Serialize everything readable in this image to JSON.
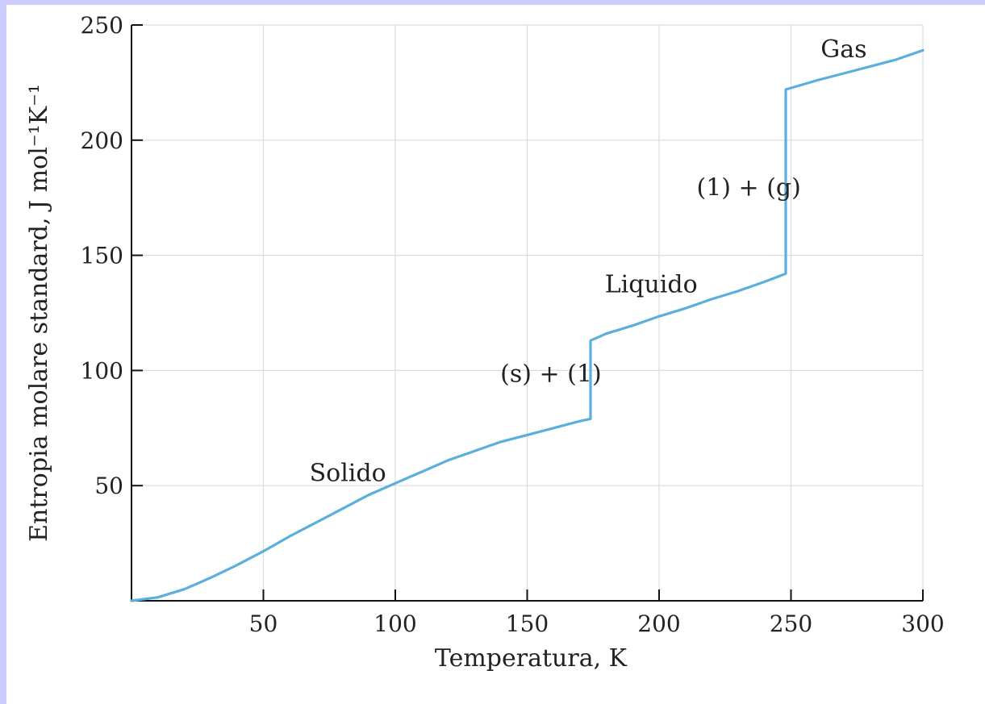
{
  "chart_data": {
    "type": "line",
    "title": "",
    "xlabel": "Temperatura, K",
    "ylabel": "Entropia molare standard, J mol⁻¹K⁻¹",
    "xlim": [
      0,
      300
    ],
    "ylim": [
      0,
      250
    ],
    "xticks": [
      50,
      100,
      150,
      200,
      250,
      300
    ],
    "yticks": [
      50,
      100,
      150,
      200,
      250
    ],
    "grid": true,
    "series": [
      {
        "color": "#5aafdc",
        "x": [
          0,
          10,
          20,
          30,
          40,
          50,
          60,
          70,
          80,
          90,
          100,
          110,
          120,
          130,
          140,
          150,
          160,
          170,
          174,
          174,
          180,
          190,
          200,
          210,
          220,
          230,
          240,
          248,
          248,
          260,
          270,
          280,
          290,
          300
        ],
        "y": [
          0,
          1.5,
          5,
          10,
          15.5,
          21.5,
          28,
          34,
          40,
          46,
          51,
          56,
          61,
          65,
          69,
          72,
          75,
          78,
          79,
          113,
          116,
          119.5,
          123.5,
          127,
          131,
          134.5,
          138.5,
          142,
          222,
          226,
          229,
          232,
          235,
          239
        ]
      }
    ],
    "annotations": [
      {
        "text": "Solido",
        "x": 82,
        "y": 52
      },
      {
        "text": "(s) + (1)",
        "x": 159,
        "y": 95
      },
      {
        "text": "Liquido",
        "x": 197,
        "y": 134
      },
      {
        "text": "(1) + (g)",
        "x": 234,
        "y": 176
      },
      {
        "text": "Gas",
        "x": 270,
        "y": 236
      }
    ]
  }
}
